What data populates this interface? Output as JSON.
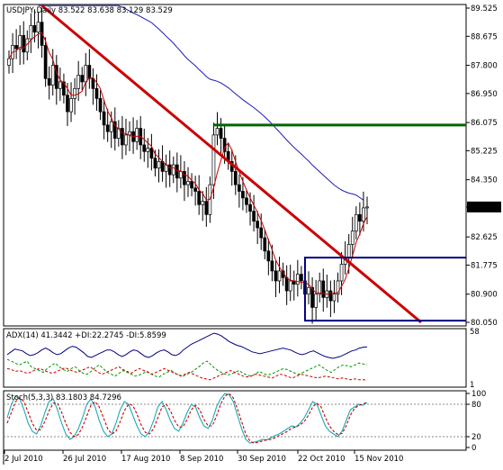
{
  "chart_data": {
    "type": "candlestick",
    "title": "USDJPY,Daily",
    "ohlc_header": "83.522 83.638 83.129 83.529",
    "header_line": "USDJPY,Daily  83.522 83.638 83.129 83.529",
    "x_tick_labels": [
      "2 Jul 2010",
      "26 Jul 2010",
      "17 Aug 2010",
      "8 Sep 2010",
      "30 Sep 2010",
      "22 Oct 2010",
      "15 Nov 2010"
    ],
    "y_tick_labels": [
      "89.525",
      "88.675",
      "87.800",
      "86.950",
      "86.075",
      "85.225",
      "84.350",
      "83.529",
      "82.625",
      "81.775",
      "80.900",
      "80.050"
    ],
    "ylim": [
      80.05,
      89.525
    ],
    "last_price": "83.529",
    "price_closes": [
      88.0,
      88.4,
      88.3,
      88.7,
      88.2,
      88.6,
      89.0,
      88.8,
      89.1,
      88.4,
      87.4,
      87.2,
      87.8,
      87.1,
      87.3,
      86.9,
      86.4,
      86.8,
      87.1,
      87.5,
      87.3,
      87.8,
      87.4,
      87.1,
      86.8,
      86.4,
      86.0,
      85.8,
      86.1,
      85.6,
      85.9,
      85.4,
      85.7,
      85.8,
      85.5,
      85.9,
      85.4,
      85.2,
      85.3,
      85.0,
      84.7,
      84.9,
      84.6,
      84.8,
      84.5,
      84.8,
      84.4,
      84.6,
      84.2,
      84.3,
      84.1,
      84.0,
      83.6,
      83.7,
      83.3,
      84.2,
      85.7,
      85.9,
      85.6,
      85.2,
      84.9,
      84.6,
      84.2,
      84.0,
      83.8,
      83.6,
      83.4,
      83.1,
      82.9,
      82.6,
      82.2,
      81.9,
      81.6,
      81.3,
      81.6,
      81.4,
      81.0,
      81.3,
      81.2,
      81.5,
      81.3,
      80.9,
      81.1,
      80.5,
      80.9,
      81.3,
      80.8,
      81.0,
      80.7,
      80.9,
      81.3,
      81.8,
      82.0,
      82.4,
      82.8,
      83.3,
      83.1,
      83.5,
      83.529
    ],
    "overlays": {
      "trendline_color": "#cc0000",
      "resistance_level": 86.0,
      "resistance_color": "#006600",
      "range_box_top": 82.0,
      "range_box_bottom": 80.1,
      "range_box_color": "#000080",
      "ma_slow_color": "#1c1cb8",
      "ma_fast_color": "#cc0000"
    },
    "adx": {
      "label": "ADX(14) 41.3442 +DI:22.2745 -DI:5.8599",
      "y_tick_labels": [
        "58",
        "1"
      ],
      "ylim": [
        1,
        58
      ],
      "adx": [
        33,
        36,
        39,
        38,
        37,
        34,
        32,
        33,
        35,
        38,
        40,
        38,
        35,
        33,
        34,
        37,
        40,
        42,
        41,
        38,
        35,
        31,
        30,
        32,
        34,
        36,
        38,
        38,
        36,
        33,
        31,
        33,
        36,
        38,
        37,
        34,
        31,
        30,
        32,
        35,
        37,
        38,
        36,
        33,
        32,
        34,
        38,
        41,
        44,
        46,
        48,
        50,
        52,
        54,
        56,
        55,
        53,
        50,
        47,
        45,
        43,
        42,
        40,
        38,
        36,
        35,
        34,
        35,
        36,
        37,
        38,
        39,
        40,
        39,
        38,
        36,
        34,
        33,
        34,
        36,
        37,
        35,
        33,
        31,
        30,
        29,
        30,
        31,
        33,
        35,
        37,
        38,
        40,
        41,
        41.3442
      ],
      "plus_di": [
        28,
        26,
        24,
        22,
        24,
        26,
        20,
        18,
        16,
        14,
        18,
        21,
        24,
        20,
        17,
        15,
        18,
        20,
        16,
        13,
        12,
        15,
        19,
        22,
        18,
        14,
        12,
        10,
        13,
        16,
        14,
        12,
        10,
        11,
        13,
        15,
        12,
        10,
        9,
        12,
        14,
        16,
        13,
        11,
        10,
        12,
        14,
        17,
        20,
        24,
        26,
        22,
        18,
        15,
        13,
        11,
        12,
        14,
        16,
        13,
        11,
        10,
        12,
        15,
        13,
        11,
        12,
        14,
        16,
        18,
        17,
        15,
        13,
        12,
        14,
        16,
        18,
        20,
        22,
        19,
        16,
        14,
        17,
        20,
        22,
        21,
        20,
        22,
        24,
        23,
        22.2745
      ],
      "minus_di": [
        18,
        17,
        15,
        16,
        14,
        13,
        15,
        17,
        18,
        16,
        14,
        13,
        15,
        17,
        19,
        17,
        15,
        14,
        16,
        18,
        20,
        17,
        14,
        12,
        14,
        16,
        18,
        20,
        17,
        15,
        13,
        16,
        18,
        16,
        14,
        12,
        14,
        16,
        18,
        16,
        14,
        12,
        10,
        12,
        14,
        12,
        10,
        8,
        7,
        6,
        8,
        10,
        12,
        14,
        16,
        14,
        12,
        10,
        9,
        10,
        12,
        11,
        10,
        9,
        8,
        10,
        12,
        11,
        9,
        8,
        10,
        12,
        11,
        10,
        9,
        8,
        9,
        10,
        9,
        8,
        7,
        8,
        7,
        6,
        7,
        6,
        6,
        5.8599
      ]
    },
    "stoch": {
      "label": "Stoch(5,3,3) 83.1803 84.7296",
      "y_tick_labels": [
        "100",
        "80",
        "20",
        "0"
      ],
      "ylim": [
        0,
        100
      ],
      "levels": [
        80,
        20
      ],
      "main": [
        55,
        80,
        95,
        90,
        70,
        45,
        30,
        25,
        40,
        65,
        85,
        90,
        70,
        45,
        25,
        15,
        20,
        35,
        55,
        80,
        90,
        75,
        50,
        30,
        20,
        25,
        45,
        70,
        85,
        80,
        60,
        40,
        25,
        20,
        30,
        50,
        75,
        85,
        70,
        50,
        35,
        30,
        45,
        65,
        80,
        75,
        55,
        40,
        35,
        50,
        75,
        90,
        100,
        98,
        85,
        60,
        35,
        15,
        8,
        10,
        12,
        15,
        14,
        18,
        22,
        25,
        30,
        35,
        40,
        38,
        45,
        55,
        70,
        85,
        80,
        60,
        40,
        30,
        25,
        20,
        30,
        50,
        70,
        75,
        80,
        78,
        83.1803
      ],
      "signal": [
        45,
        65,
        85,
        92,
        85,
        65,
        45,
        32,
        33,
        48,
        68,
        82,
        82,
        65,
        45,
        28,
        20,
        24,
        38,
        58,
        78,
        85,
        75,
        55,
        35,
        25,
        30,
        48,
        68,
        80,
        78,
        62,
        42,
        28,
        25,
        35,
        55,
        75,
        80,
        68,
        50,
        38,
        38,
        52,
        70,
        78,
        70,
        52,
        40,
        40,
        58,
        80,
        95,
        100,
        92,
        72,
        48,
        25,
        12,
        8,
        10,
        12,
        14,
        15,
        18,
        22,
        26,
        30,
        36,
        38,
        42,
        48,
        60,
        75,
        82,
        75,
        56,
        40,
        30,
        24,
        26,
        40,
        60,
        72,
        78,
        80,
        84.7296
      ]
    }
  }
}
